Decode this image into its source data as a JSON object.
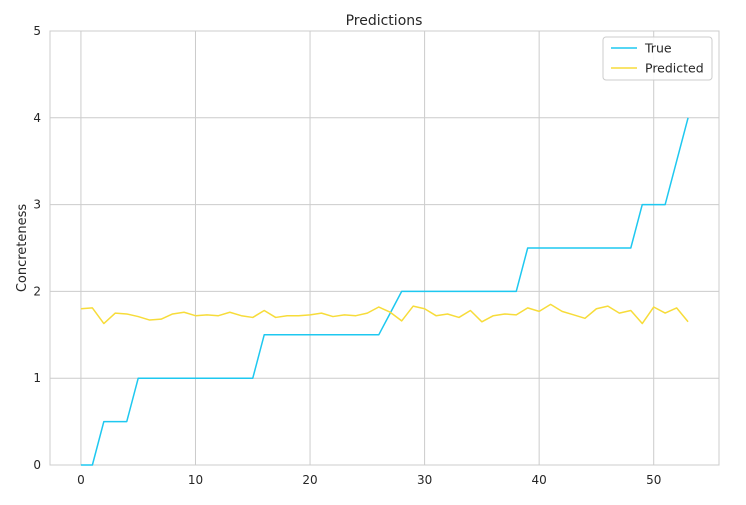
{
  "chart_data": {
    "type": "line",
    "title": "Predictions",
    "xlabel": "",
    "ylabel": "Concreteness",
    "xlim": [
      -2.7,
      55.7
    ],
    "ylim": [
      0,
      5
    ],
    "xticks": [
      0,
      10,
      20,
      30,
      40,
      50
    ],
    "yticks": [
      0,
      1,
      2,
      3,
      4,
      5
    ],
    "grid": true,
    "legend_position": "top-right",
    "x": [
      0,
      1,
      2,
      3,
      4,
      5,
      6,
      7,
      8,
      9,
      10,
      11,
      12,
      13,
      14,
      15,
      16,
      17,
      18,
      19,
      20,
      21,
      22,
      23,
      24,
      25,
      26,
      27,
      28,
      29,
      30,
      31,
      32,
      33,
      34,
      35,
      36,
      37,
      38,
      39,
      40,
      41,
      42,
      43,
      44,
      45,
      46,
      47,
      48,
      49,
      50,
      51,
      52,
      53
    ],
    "series": [
      {
        "name": "True",
        "color": "#1ec8f0",
        "values": [
          0,
          0,
          0.5,
          0.5,
          0.5,
          1,
          1,
          1,
          1,
          1,
          1,
          1,
          1,
          1,
          1,
          1,
          1.5,
          1.5,
          1.5,
          1.5,
          1.5,
          1.5,
          1.5,
          1.5,
          1.5,
          1.5,
          1.5,
          1.75,
          2,
          2,
          2,
          2,
          2,
          2,
          2,
          2,
          2,
          2,
          2,
          2.5,
          2.5,
          2.5,
          2.5,
          2.5,
          2.5,
          2.5,
          2.5,
          2.5,
          2.5,
          3,
          3,
          3,
          3.5,
          4
        ]
      },
      {
        "name": "Predicted",
        "color": "#f7dc3a",
        "values": [
          1.8,
          1.81,
          1.63,
          1.75,
          1.74,
          1.71,
          1.67,
          1.68,
          1.74,
          1.76,
          1.72,
          1.73,
          1.72,
          1.76,
          1.72,
          1.7,
          1.78,
          1.7,
          1.72,
          1.72,
          1.73,
          1.75,
          1.71,
          1.73,
          1.72,
          1.75,
          1.82,
          1.76,
          1.66,
          1.83,
          1.8,
          1.72,
          1.74,
          1.7,
          1.78,
          1.65,
          1.72,
          1.74,
          1.73,
          1.81,
          1.77,
          1.85,
          1.77,
          1.73,
          1.69,
          1.8,
          1.83,
          1.75,
          1.78,
          1.63,
          1.82,
          1.75,
          1.81,
          1.65
        ]
      }
    ]
  }
}
